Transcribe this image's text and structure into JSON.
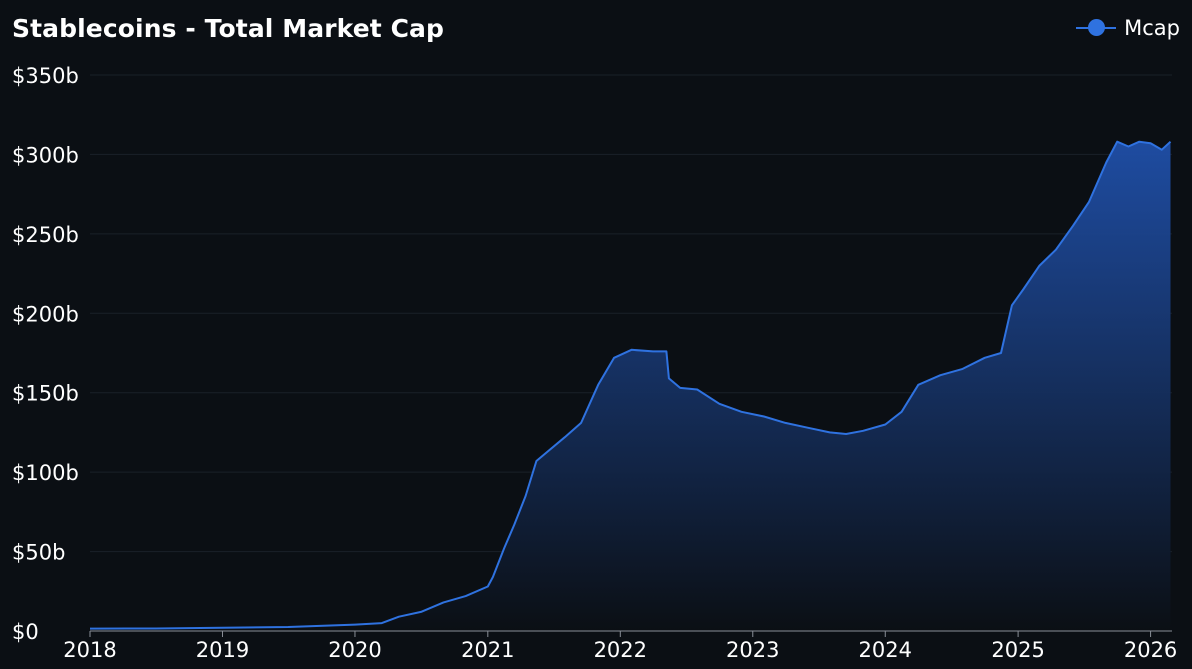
{
  "chart_data": {
    "type": "area",
    "title": "Stablecoins - Total Market Cap",
    "xlabel": "",
    "ylabel": "",
    "legend": {
      "position": "top-right",
      "entries": [
        "Mcap"
      ]
    },
    "colors": {
      "line": "#2f72e0",
      "fill_top": "#1f4fa8",
      "fill_bottom": "#0b0f14",
      "background": "#0b0f14",
      "text": "#ffffff"
    },
    "grid": true,
    "ylim": [
      0,
      350
    ],
    "xlim": [
      "2018-01-01",
      "2026-03-01"
    ],
    "y_ticks": [
      "$0",
      "$50b",
      "$100b",
      "$150b",
      "$200b",
      "$250b",
      "$300b",
      "$350b"
    ],
    "y_tick_values": [
      0,
      50,
      100,
      150,
      200,
      250,
      300,
      350
    ],
    "x_ticks": [
      "2018",
      "2019",
      "2020",
      "2021",
      "2022",
      "2023",
      "2024",
      "2025",
      "2026"
    ],
    "x_tick_values": [
      "2018-01-01",
      "2019-01-01",
      "2020-01-01",
      "2021-01-01",
      "2022-01-01",
      "2023-01-01",
      "2024-01-01",
      "2025-01-01",
      "2026-01-01"
    ],
    "series": [
      {
        "name": "Mcap",
        "unit": "$b",
        "x": [
          "2018-01-01",
          "2018-07-01",
          "2019-01-01",
          "2019-07-01",
          "2020-01-01",
          "2020-03-15",
          "2020-05-01",
          "2020-07-01",
          "2020-09-01",
          "2020-11-01",
          "2021-01-01",
          "2021-01-15",
          "2021-02-15",
          "2021-03-15",
          "2021-04-15",
          "2021-05-15",
          "2021-06-15",
          "2021-08-01",
          "2021-09-15",
          "2021-11-01",
          "2021-12-15",
          "2022-02-01",
          "2022-04-01",
          "2022-05-08",
          "2022-05-15",
          "2022-06-15",
          "2022-08-01",
          "2022-10-01",
          "2022-12-01",
          "2023-02-01",
          "2023-04-01",
          "2023-06-01",
          "2023-08-01",
          "2023-09-15",
          "2023-11-01",
          "2024-01-01",
          "2024-02-15",
          "2024-04-01",
          "2024-06-01",
          "2024-08-01",
          "2024-10-01",
          "2024-11-15",
          "2024-12-15",
          "2025-01-15",
          "2025-03-01",
          "2025-04-15",
          "2025-06-01",
          "2025-07-15",
          "2025-09-01",
          "2025-10-01",
          "2025-11-01",
          "2025-12-01",
          "2026-01-01",
          "2026-02-01",
          "2026-02-25"
        ],
        "values": [
          1.5,
          1.6,
          2.0,
          2.5,
          4.0,
          5.0,
          9.0,
          12.0,
          18.0,
          22.0,
          28.0,
          34.0,
          52.0,
          67.0,
          85.0,
          107.0,
          113.0,
          122.0,
          131.0,
          155.0,
          172.0,
          177.0,
          176.0,
          176.0,
          159.0,
          153.0,
          152.0,
          143.0,
          138.0,
          135.0,
          131.0,
          128.0,
          125.0,
          124.0,
          126.0,
          130.0,
          138.0,
          155.0,
          161.0,
          165.0,
          172.0,
          175.0,
          205.0,
          215.0,
          230.0,
          240.0,
          255.0,
          270.0,
          295.0,
          308.0,
          305.0,
          308.0,
          307.0,
          303.0,
          308.0
        ]
      }
    ]
  }
}
